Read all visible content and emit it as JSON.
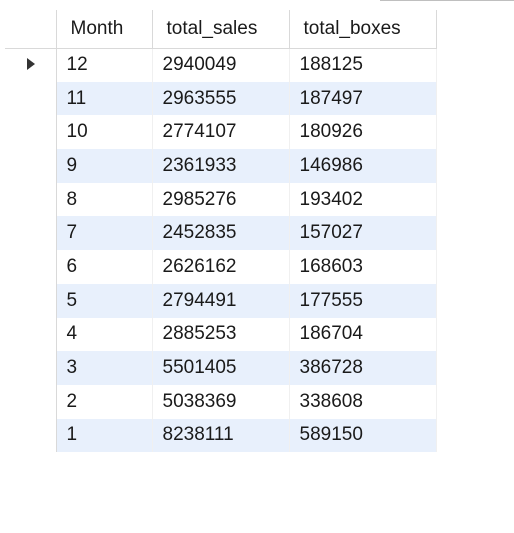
{
  "result_grid": {
    "columns": [
      "Month",
      "total_sales",
      "total_boxes"
    ],
    "rows": [
      {
        "month": "12",
        "total_sales": "2940049",
        "total_boxes": "188125"
      },
      {
        "month": "11",
        "total_sales": "2963555",
        "total_boxes": "187497"
      },
      {
        "month": "10",
        "total_sales": "2774107",
        "total_boxes": "180926"
      },
      {
        "month": "9",
        "total_sales": "2361933",
        "total_boxes": "146986"
      },
      {
        "month": "8",
        "total_sales": "2985276",
        "total_boxes": "193402"
      },
      {
        "month": "7",
        "total_sales": "2452835",
        "total_boxes": "157027"
      },
      {
        "month": "6",
        "total_sales": "2626162",
        "total_boxes": "168603"
      },
      {
        "month": "5",
        "total_sales": "2794491",
        "total_boxes": "177555"
      },
      {
        "month": "4",
        "total_sales": "2885253",
        "total_boxes": "186704"
      },
      {
        "month": "3",
        "total_sales": "5501405",
        "total_boxes": "386728"
      },
      {
        "month": "2",
        "total_sales": "5038369",
        "total_boxes": "338608"
      },
      {
        "month": "1",
        "total_sales": "8238111",
        "total_boxes": "589150"
      }
    ],
    "current_row_index": 0,
    "current_row_icon": "row-pointer-icon",
    "alt_row_color": "#e8f0fc"
  }
}
